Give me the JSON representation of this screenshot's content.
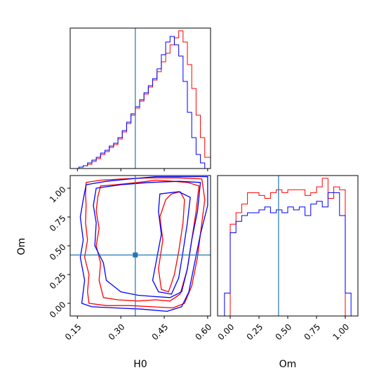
{
  "chart_data": {
    "type": "corner",
    "truth": {
      "H0": 0.35,
      "Om": 0.42
    },
    "truth_color": "#1f77b4",
    "series": [
      {
        "color": "#ff0000"
      },
      {
        "color": "#0000ff"
      }
    ],
    "panels": [
      {
        "id": "hist-H0",
        "type": "histogram",
        "xlim": [
          0.125,
          0.61
        ],
        "xticks": [
          0.15,
          0.3,
          0.45,
          0.6
        ],
        "edges": [
          0.125,
          0.14,
          0.155,
          0.17,
          0.185,
          0.2,
          0.215,
          0.23,
          0.245,
          0.26,
          0.275,
          0.29,
          0.305,
          0.32,
          0.335,
          0.35,
          0.365,
          0.38,
          0.395,
          0.41,
          0.425,
          0.44,
          0.455,
          0.47,
          0.485,
          0.5,
          0.515,
          0.53,
          0.545,
          0.56,
          0.575,
          0.59,
          0.61
        ],
        "series": [
          {
            "color": "#ff0000",
            "counts": [
              0,
              0,
              1,
              2,
              3,
              5,
              7,
              10,
              12,
              15,
              17,
              21,
              26,
              32,
              38,
              43,
              48,
              53,
              58,
              63,
              69,
              76,
              82,
              88,
              93,
              98,
              90,
              74,
              57,
              38,
              22,
              8
            ]
          },
          {
            "color": "#0000ff",
            "counts": [
              0,
              0,
              1,
              2,
              4,
              6,
              8,
              11,
              13,
              16,
              18,
              22,
              27,
              33,
              39,
              44,
              49,
              54,
              59,
              64,
              71,
              81,
              90,
              94,
              88,
              80,
              62,
              40,
              22,
              10,
              4,
              0
            ]
          }
        ]
      },
      {
        "id": "hist-Om",
        "type": "histogram",
        "xlim": [
          -0.11,
          1.11
        ],
        "xticks": [
          0.0,
          0.25,
          0.5,
          0.75,
          1.0
        ],
        "edges": [
          -0.11,
          -0.05,
          0.0,
          0.05,
          0.1,
          0.15,
          0.2,
          0.25,
          0.3,
          0.35,
          0.4,
          0.45,
          0.5,
          0.55,
          0.6,
          0.65,
          0.7,
          0.75,
          0.8,
          0.85,
          0.9,
          0.95,
          1.0,
          1.05,
          1.11
        ],
        "series": [
          {
            "color": "#ff0000",
            "counts": [
              0,
              0,
              64,
              72,
              78,
              86,
              86,
              84,
              82,
              86,
              88,
              86,
              88,
              88,
              88,
              84,
              86,
              90,
              96,
              82,
              90,
              88,
              0,
              0
            ]
          },
          {
            "color": "#0000ff",
            "counts": [
              0,
              16,
              58,
              66,
              70,
              72,
              72,
              74,
              76,
              72,
              74,
              72,
              76,
              74,
              76,
              70,
              78,
              80,
              76,
              86,
              86,
              70,
              16,
              0
            ]
          }
        ]
      },
      {
        "id": "contour-H0-Om",
        "type": "contour",
        "xlabel": "H0",
        "ylabel": "Om",
        "xlim": [
          0.125,
          0.61
        ],
        "ylim": [
          -0.11,
          1.11
        ],
        "xticks": [
          0.15,
          0.3,
          0.45,
          0.6
        ],
        "yticks": [
          0.0,
          0.25,
          0.5,
          0.75,
          1.0
        ],
        "contours": [
          {
            "color": "#ff0000",
            "points": [
              [
                0.18,
                1.05
              ],
              [
                0.23,
                1.07
              ],
              [
                0.3,
                1.08
              ],
              [
                0.4,
                1.09
              ],
              [
                0.5,
                1.09
              ],
              [
                0.58,
                1.08
              ],
              [
                0.59,
                0.9
              ],
              [
                0.58,
                0.7
              ],
              [
                0.565,
                0.4
              ],
              [
                0.545,
                0.15
              ],
              [
                0.52,
                0.0
              ],
              [
                0.48,
                -0.04
              ],
              [
                0.41,
                -0.03
              ],
              [
                0.33,
                -0.02
              ],
              [
                0.25,
                -0.02
              ],
              [
                0.19,
                0.0
              ],
              [
                0.185,
                0.1
              ],
              [
                0.19,
                0.25
              ],
              [
                0.175,
                0.4
              ],
              [
                0.185,
                0.55
              ],
              [
                0.178,
                0.7
              ],
              [
                0.18,
                0.85
              ],
              [
                0.178,
                0.95
              ]
            ]
          },
          {
            "color": "#ff0000",
            "points": [
              [
                0.23,
                1.02
              ],
              [
                0.28,
                1.03
              ],
              [
                0.36,
                1.05
              ],
              [
                0.42,
                1.07
              ],
              [
                0.48,
                1.06
              ],
              [
                0.53,
                1.05
              ],
              [
                0.57,
                1.02
              ],
              [
                0.56,
                0.8
              ],
              [
                0.545,
                0.55
              ],
              [
                0.53,
                0.3
              ],
              [
                0.505,
                0.08
              ],
              [
                0.47,
                0.02
              ],
              [
                0.42,
                0.03
              ],
              [
                0.36,
                0.02
              ],
              [
                0.29,
                0.03
              ],
              [
                0.24,
                0.05
              ],
              [
                0.225,
                0.2
              ],
              [
                0.23,
                0.35
              ],
              [
                0.215,
                0.5
              ],
              [
                0.225,
                0.65
              ],
              [
                0.215,
                0.8
              ],
              [
                0.22,
                0.92
              ]
            ]
          },
          {
            "color": "#ff0000",
            "points": [
              [
                0.475,
                0.95
              ],
              [
                0.505,
                0.97
              ],
              [
                0.52,
                0.9
              ],
              [
                0.515,
                0.7
              ],
              [
                0.5,
                0.45
              ],
              [
                0.485,
                0.25
              ],
              [
                0.465,
                0.1
              ],
              [
                0.44,
                0.12
              ],
              [
                0.43,
                0.3
              ],
              [
                0.445,
                0.55
              ],
              [
                0.435,
                0.75
              ],
              [
                0.455,
                0.9
              ]
            ]
          },
          {
            "color": "#0000ff",
            "points": [
              [
                0.18,
                1.03
              ],
              [
                0.25,
                1.06
              ],
              [
                0.33,
                1.08
              ],
              [
                0.42,
                1.1
              ],
              [
                0.52,
                1.1
              ],
              [
                0.6,
                1.1
              ],
              [
                0.6,
                0.85
              ],
              [
                0.575,
                0.6
              ],
              [
                0.555,
                0.35
              ],
              [
                0.535,
                0.1
              ],
              [
                0.51,
                -0.03
              ],
              [
                0.46,
                -0.07
              ],
              [
                0.37,
                -0.05
              ],
              [
                0.28,
                -0.04
              ],
              [
                0.2,
                -0.03
              ],
              [
                0.165,
                0.0
              ],
              [
                0.175,
                0.2
              ],
              [
                0.16,
                0.4
              ],
              [
                0.17,
                0.55
              ],
              [
                0.16,
                0.75
              ],
              [
                0.17,
                0.9
              ]
            ]
          },
          {
            "color": "#0000ff",
            "points": [
              [
                0.215,
                1.0
              ],
              [
                0.3,
                1.03
              ],
              [
                0.4,
                1.05
              ],
              [
                0.5,
                1.06
              ],
              [
                0.575,
                1.05
              ],
              [
                0.565,
                0.8
              ],
              [
                0.545,
                0.55
              ],
              [
                0.53,
                0.3
              ],
              [
                0.51,
                0.1
              ],
              [
                0.47,
                0.05
              ],
              [
                0.41,
                0.06
              ],
              [
                0.36,
                0.07
              ],
              [
                0.3,
                0.1
              ],
              [
                0.25,
                0.2
              ],
              [
                0.24,
                0.35
              ],
              [
                0.21,
                0.5
              ],
              [
                0.215,
                0.7
              ],
              [
                0.205,
                0.85
              ]
            ]
          },
          {
            "color": "#0000ff",
            "points": [
              [
                0.435,
                0.95
              ],
              [
                0.5,
                0.97
              ],
              [
                0.54,
                0.92
              ],
              [
                0.53,
                0.7
              ],
              [
                0.515,
                0.45
              ],
              [
                0.5,
                0.22
              ],
              [
                0.475,
                0.08
              ],
              [
                0.43,
                0.1
              ],
              [
                0.41,
                0.2
              ],
              [
                0.425,
                0.4
              ],
              [
                0.44,
                0.6
              ],
              [
                0.43,
                0.8
              ]
            ]
          }
        ]
      }
    ]
  }
}
